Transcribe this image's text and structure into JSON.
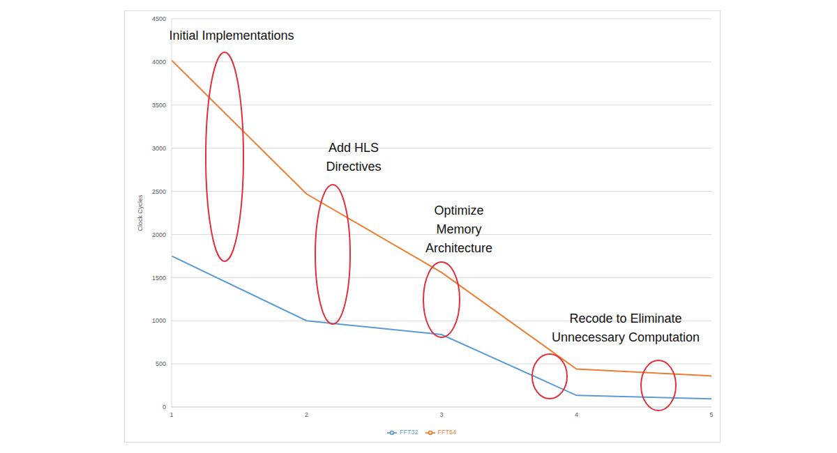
{
  "chart_data": {
    "type": "line",
    "categories": [
      "1",
      "2",
      "3",
      "4",
      "5"
    ],
    "series": [
      {
        "name": "FFT32",
        "color": "#5b9bd5",
        "values": [
          1750,
          1000,
          840,
          135,
          95
        ]
      },
      {
        "name": "FFT64",
        "color": "#ed7d31",
        "values": [
          4020,
          2470,
          1560,
          440,
          360
        ]
      }
    ],
    "ylim": [
      0,
      4500
    ],
    "yticks": [
      0,
      500,
      1000,
      1500,
      2000,
      2500,
      3000,
      3500,
      4000,
      4500
    ],
    "y_label": "Clock Cycles",
    "annotations": [
      "Initial Implementations",
      "Add HLS Directives",
      "Optimize Memory Architecture",
      "Recode to Eliminate Unnecessary Computation"
    ],
    "grid": true,
    "legend": "bottom"
  }
}
